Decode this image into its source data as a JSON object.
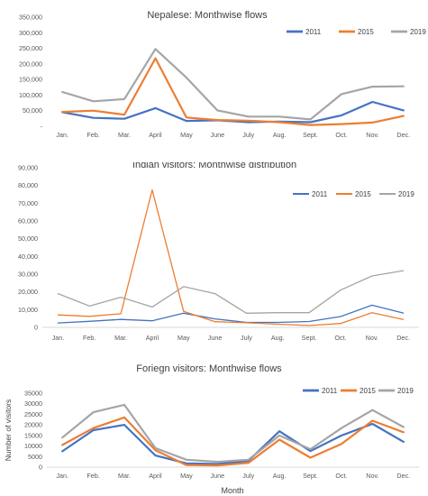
{
  "chart_data": [
    {
      "type": "line",
      "title": "Nepalese: Monthwise flows",
      "xlabel": "",
      "ylabel": "",
      "categories": [
        "Jan.",
        "Feb.",
        "Mar.",
        "April",
        "May",
        "June",
        "July",
        "Aug.",
        "Sept.",
        "Oct.",
        "Nov.",
        "Dec."
      ],
      "y_ticks": [
        "-",
        "50,000",
        "100,000",
        "150,000",
        "200,000",
        "250,000",
        "300,000",
        "350,000"
      ],
      "ylim": [
        0,
        350000
      ],
      "grid": false,
      "legend": "top-right",
      "series": [
        {
          "name": "2011",
          "color": "#4472c4",
          "values": [
            45000,
            27000,
            24000,
            58000,
            17000,
            19000,
            13000,
            15000,
            13000,
            35000,
            78000,
            51000
          ]
        },
        {
          "name": "2015",
          "color": "#ed7d31",
          "values": [
            46000,
            50000,
            37000,
            218000,
            28000,
            20000,
            18000,
            13000,
            4000,
            7000,
            12000,
            33000
          ]
        },
        {
          "name": "2019",
          "color": "#a5a5a5",
          "values": [
            110000,
            80000,
            87000,
            248000,
            156000,
            51000,
            31000,
            31000,
            22000,
            103000,
            127000,
            128000
          ]
        }
      ]
    },
    {
      "type": "line",
      "title": "Indian visitors: Monthwise distribution",
      "xlabel": "",
      "ylabel": "",
      "categories": [
        "Jan.",
        "Feb.",
        "Mar.",
        "April",
        "May",
        "June",
        "July",
        "Aug.",
        "Sept.",
        "Oct.",
        "Nov.",
        "Dec."
      ],
      "y_ticks": [
        "0",
        "10,000",
        "20,000",
        "30,000",
        "40,000",
        "50,000",
        "60,000",
        "70,000",
        "80,000",
        "90,000"
      ],
      "ylim": [
        0,
        90000
      ],
      "grid": false,
      "legend": "top-right",
      "series": [
        {
          "name": "2011",
          "color": "#4472c4",
          "values": [
            2500,
            3400,
            4500,
            3700,
            8000,
            4800,
            2800,
            2800,
            3300,
            6100,
            12500,
            8100
          ]
        },
        {
          "name": "2015",
          "color": "#ed7d31",
          "values": [
            7000,
            6200,
            7700,
            77500,
            9000,
            3200,
            2600,
            1800,
            1000,
            2200,
            8300,
            4500
          ]
        },
        {
          "name": "2019",
          "color": "#a5a5a5",
          "values": [
            19000,
            12000,
            17000,
            11500,
            23000,
            19000,
            8000,
            8300,
            8300,
            21000,
            29000,
            32000
          ]
        }
      ]
    },
    {
      "type": "line",
      "title": "Foriegn visitors: Monthwise flows",
      "xlabel": "Month",
      "ylabel": "Number of visitors",
      "categories": [
        "Jan.",
        "Feb.",
        "Mar.",
        "April",
        "May",
        "June",
        "July",
        "Aug.",
        "Sept.",
        "Oct.",
        "Nov.",
        "Dec."
      ],
      "y_ticks": [
        "0",
        "5000",
        "10000",
        "15000",
        "20000",
        "25000",
        "30000",
        "35000"
      ],
      "ylim": [
        0,
        35000
      ],
      "grid": false,
      "legend": "top-right",
      "series": [
        {
          "name": "2011",
          "color": "#4472c4",
          "values": [
            7500,
            17500,
            20000,
            5500,
            1800,
            1500,
            3000,
            17000,
            7600,
            15000,
            20500,
            12000
          ]
        },
        {
          "name": "2015",
          "color": "#ed7d31",
          "values": [
            10500,
            18500,
            23500,
            8000,
            1000,
            800,
            2000,
            13000,
            4500,
            11000,
            22000,
            16500
          ]
        },
        {
          "name": "2019",
          "color": "#a5a5a5",
          "values": [
            14000,
            26000,
            29500,
            9000,
            3500,
            2500,
            3500,
            15000,
            8500,
            18500,
            27000,
            19000
          ]
        }
      ]
    }
  ]
}
